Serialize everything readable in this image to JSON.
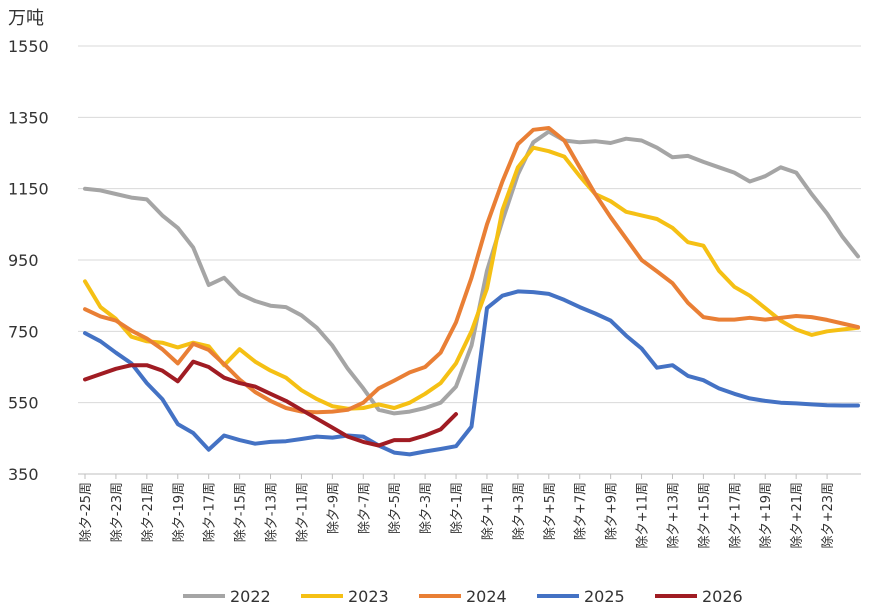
{
  "chart_data": {
    "type": "line",
    "title": "",
    "unit_label": "万吨",
    "xlabel": "",
    "ylabel": "万吨",
    "ylim": [
      350,
      1550
    ],
    "yticks": [
      350,
      550,
      750,
      950,
      1150,
      1350,
      1550
    ],
    "grid": true,
    "legend_position": "bottom",
    "categories": [
      "除夕-25周",
      "除夕-24周",
      "除夕-23周",
      "除夕-22周",
      "除夕-21周",
      "除夕-20周",
      "除夕-19周",
      "除夕-18周",
      "除夕-17周",
      "除夕-16周",
      "除夕-15周",
      "除夕-14周",
      "除夕-13周",
      "除夕-12周",
      "除夕-11周",
      "除夕-10周",
      "除夕-9周",
      "除夕-8周",
      "除夕-7周",
      "除夕-6周",
      "除夕-5周",
      "除夕-4周",
      "除夕-3周",
      "除夕-2周",
      "除夕-1周",
      "除夕周",
      "除夕+1周",
      "除夕+2周",
      "除夕+3周",
      "除夕+4周",
      "除夕+5周",
      "除夕+6周",
      "除夕+7周",
      "除夕+8周",
      "除夕+9周",
      "除夕+10周",
      "除夕+11周",
      "除夕+12周",
      "除夕+13周",
      "除夕+14周",
      "除夕+15周",
      "除夕+16周",
      "除夕+17周",
      "除夕+18周",
      "除夕+19周",
      "除夕+20周",
      "除夕+21周",
      "除夕+22周",
      "除夕+23周",
      "除夕+24周",
      "除夕+25周"
    ],
    "x_tick_labels": [
      "除夕-25周",
      "除夕-23周",
      "除夕-21周",
      "除夕-19周",
      "除夕-17周",
      "除夕-15周",
      "除夕-13周",
      "除夕-11周",
      "除夕-9周",
      "除夕-7周",
      "除夕-5周",
      "除夕-3周",
      "除夕-1周",
      "除夕+1周",
      "除夕+3周",
      "除夕+5周",
      "除夕+7周",
      "除夕+9周",
      "除夕+11周",
      "除夕+13周",
      "除夕+15周",
      "除夕+17周",
      "除夕+19周",
      "除夕+21周",
      "除夕+23周"
    ],
    "series": [
      {
        "name": "2022",
        "color": "#a5a5a5",
        "values": [
          1150,
          1145,
          1135,
          1125,
          1120,
          1075,
          1040,
          985,
          880,
          900,
          855,
          835,
          822,
          818,
          795,
          760,
          710,
          645,
          590,
          530,
          520,
          525,
          535,
          550,
          595,
          710,
          920,
          1060,
          1190,
          1280,
          1310,
          1285,
          1280,
          1283,
          1278,
          1290,
          1285,
          1265,
          1238,
          1242,
          1225,
          1210,
          1195,
          1170,
          1185,
          1210,
          1195,
          1135,
          1080,
          1015,
          960
        ]
      },
      {
        "name": "2023",
        "color": "#f5c014",
        "values": [
          890,
          818,
          785,
          735,
          722,
          718,
          705,
          718,
          708,
          655,
          700,
          665,
          640,
          620,
          585,
          560,
          540,
          533,
          535,
          545,
          535,
          550,
          575,
          605,
          660,
          750,
          870,
          1090,
          1210,
          1265,
          1255,
          1240,
          1185,
          1135,
          1115,
          1085,
          1075,
          1065,
          1040,
          1000,
          990,
          920,
          875,
          850,
          815,
          780,
          755,
          740,
          750,
          755,
          760
        ]
      },
      {
        "name": "2024",
        "color": "#e97f35",
        "values": [
          812,
          792,
          780,
          752,
          730,
          700,
          660,
          715,
          698,
          658,
          615,
          580,
          555,
          535,
          525,
          523,
          525,
          530,
          550,
          590,
          612,
          635,
          650,
          690,
          775,
          900,
          1050,
          1170,
          1275,
          1315,
          1320,
          1285,
          1210,
          1135,
          1070,
          1010,
          950,
          918,
          885,
          830,
          790,
          783,
          783,
          788,
          783,
          788,
          793,
          790,
          782,
          772,
          762
        ]
      },
      {
        "name": "2025",
        "color": "#4472c4",
        "values": [
          745,
          722,
          690,
          660,
          605,
          560,
          490,
          465,
          418,
          458,
          445,
          435,
          440,
          442,
          448,
          455,
          452,
          458,
          455,
          430,
          410,
          405,
          413,
          420,
          428,
          483,
          815,
          850,
          862,
          860,
          855,
          838,
          818,
          800,
          780,
          738,
          702,
          648,
          655,
          625,
          613,
          590,
          575,
          562,
          555,
          550,
          548,
          545,
          543,
          542,
          542
        ]
      },
      {
        "name": "2026",
        "color": "#a01c23",
        "values": [
          615,
          630,
          645,
          655,
          655,
          640,
          610,
          665,
          650,
          620,
          605,
          595,
          575,
          555,
          530,
          505,
          480,
          455,
          440,
          430,
          445,
          445,
          458,
          475,
          518,
          null,
          null,
          null,
          null,
          null,
          null,
          null,
          null,
          null,
          null,
          null,
          null,
          null,
          null,
          null,
          null,
          null,
          null,
          null,
          null,
          null,
          null,
          null,
          null,
          null,
          null
        ]
      }
    ]
  }
}
